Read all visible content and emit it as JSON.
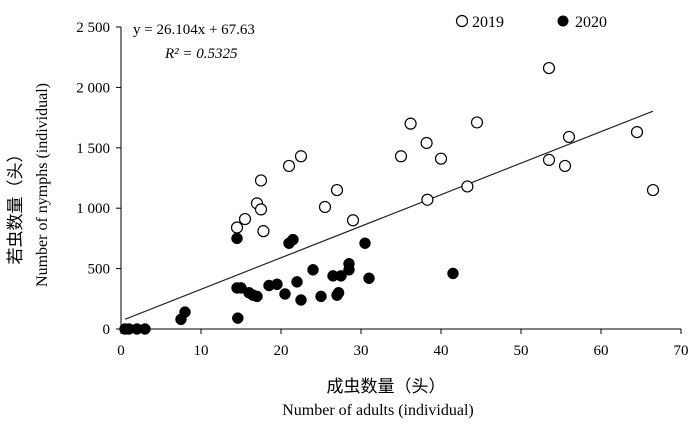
{
  "chart_data": {
    "type": "scatter",
    "xlabel_cn": "成虫数量（头）",
    "xlabel_en": "Number of adults (individual)",
    "ylabel_cn": "若虫数量（头）",
    "ylabel_en": "Number of nymphs (individual)",
    "xlim": [
      0,
      70
    ],
    "ylim": [
      0,
      2500
    ],
    "xticks": [
      "0",
      "10",
      "20",
      "30",
      "40",
      "50",
      "60",
      "70"
    ],
    "yticks": [
      "0",
      "500",
      "1 000",
      "1 500",
      "2 000",
      "2 500"
    ],
    "equation": "y = 26.104x + 67.63",
    "r2_label": "R² = 0.5325",
    "trendline": {
      "slope": 26.104,
      "intercept": 67.63,
      "x_range": [
        0.5,
        66.5
      ]
    },
    "legend_position": "top-right",
    "series": [
      {
        "name": "2019",
        "marker": "open-circle",
        "x": [
          14.5,
          15.5,
          17.0,
          17.5,
          17.5,
          17.8,
          21.0,
          22.5,
          25.5,
          27.0,
          29.0,
          35.0,
          36.2,
          38.2,
          38.3,
          40.0,
          43.3,
          44.5,
          53.5,
          53.5,
          55.5,
          56.0,
          64.5,
          66.5
        ],
        "y": [
          840,
          910,
          1040,
          1230,
          990,
          810,
          1350,
          1430,
          1010,
          1150,
          900,
          1430,
          1700,
          1540,
          1070,
          1410,
          1180,
          1710,
          2160,
          1400,
          1350,
          1590,
          1630,
          1150
        ]
      },
      {
        "name": "2020",
        "marker": "filled-circle",
        "x": [
          0.5,
          1.0,
          2.0,
          3.0,
          7.5,
          8.0,
          14.5,
          14.5,
          14.6,
          15.0,
          16.0,
          16.5,
          17.0,
          18.5,
          19.5,
          20.5,
          21.0,
          21.5,
          22.0,
          22.5,
          24.0,
          25.0,
          26.5,
          27.0,
          27.2,
          27.5,
          28.5,
          28.5,
          30.5,
          31.0,
          41.5
        ],
        "y": [
          0,
          0,
          0,
          0,
          80,
          140,
          750,
          340,
          90,
          340,
          300,
          280,
          270,
          360,
          370,
          290,
          710,
          740,
          390,
          240,
          490,
          270,
          440,
          280,
          300,
          440,
          490,
          540,
          710,
          420,
          460
        ]
      }
    ]
  }
}
